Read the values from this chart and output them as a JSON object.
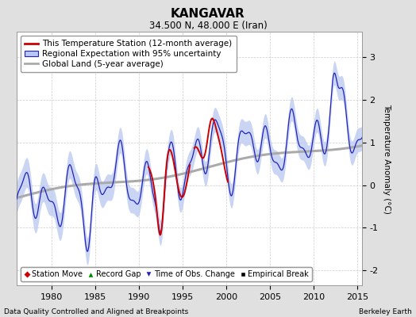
{
  "title": "KANGAVAR",
  "subtitle": "34.500 N, 48.000 E (Iran)",
  "ylabel": "Temperature Anomaly (°C)",
  "xlabel_note": "Data Quality Controlled and Aligned at Breakpoints",
  "credit": "Berkeley Earth",
  "xlim": [
    1976.0,
    2015.5
  ],
  "ylim": [
    -2.35,
    3.6
  ],
  "yticks": [
    -2,
    -1,
    0,
    1,
    2,
    3
  ],
  "xticks": [
    1980,
    1985,
    1990,
    1995,
    2000,
    2005,
    2010,
    2015
  ],
  "bg_color": "#e0e0e0",
  "plot_bg_color": "#ffffff",
  "red_line_color": "#cc0000",
  "blue_line_color": "#2222bb",
  "blue_fill_color": "#b8c8ee",
  "gray_line_color": "#aaaaaa",
  "title_fontsize": 11,
  "subtitle_fontsize": 8.5,
  "legend_fontsize": 7.5,
  "tick_fontsize": 8,
  "ylabel_fontsize": 7.5,
  "annot_fontsize": 6.5
}
